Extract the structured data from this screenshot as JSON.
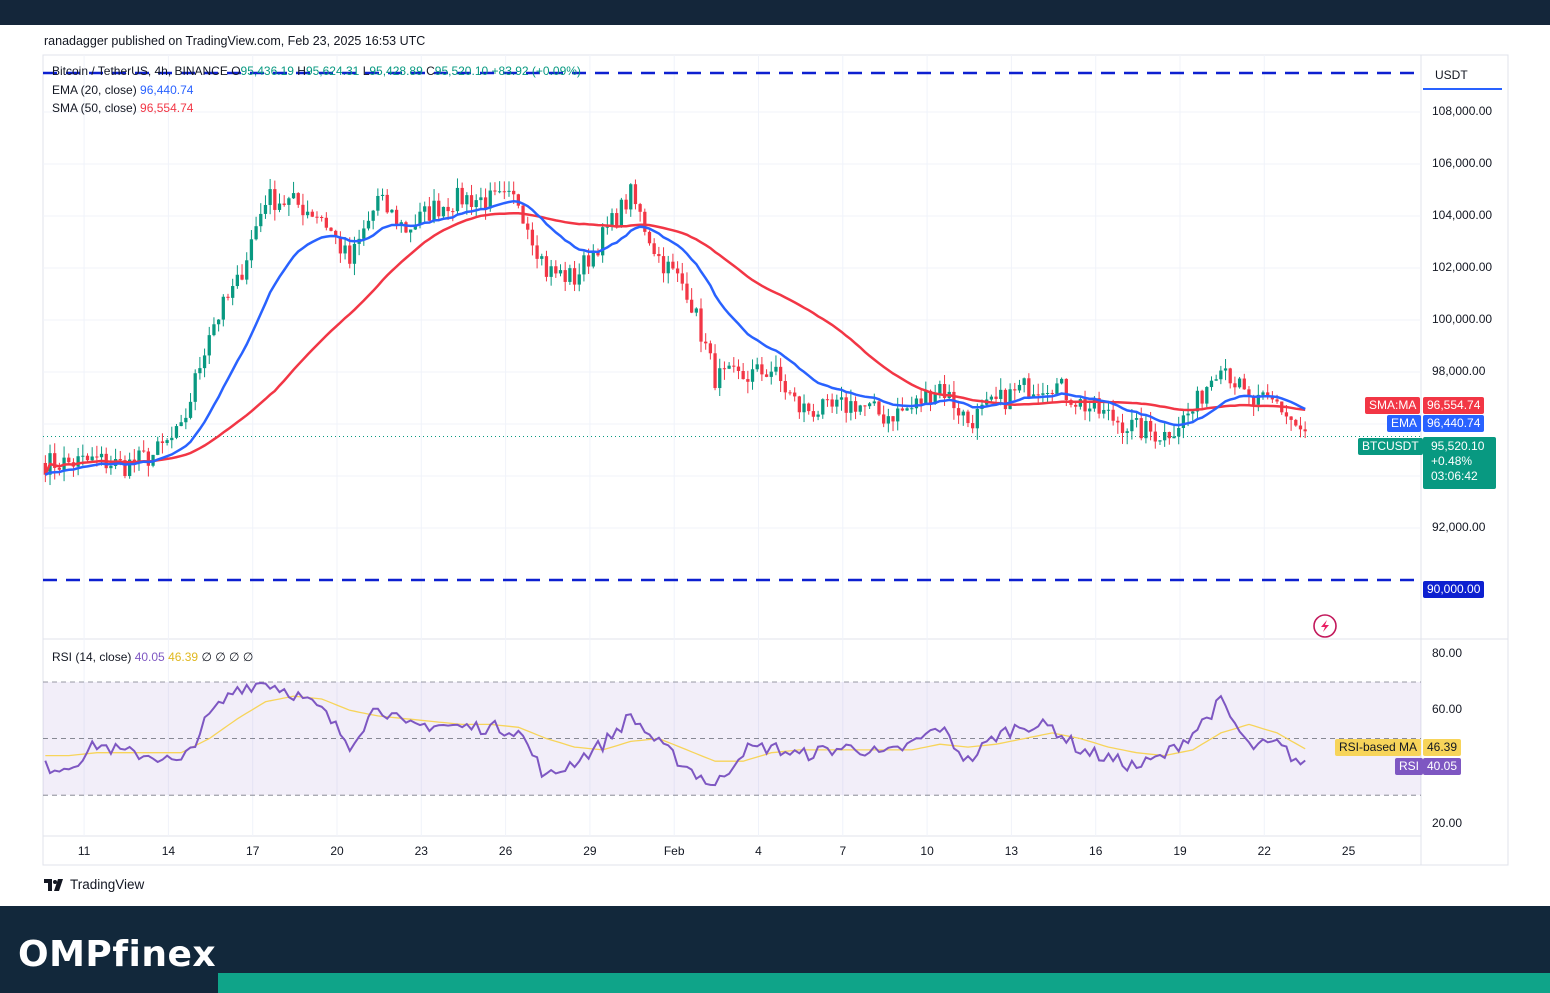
{
  "attribution": "ranadagger published on TradingView.com, Feb 23, 2025 16:53 UTC",
  "legend": {
    "symbol": "Bitcoin / TetherUS, 4h, BINANCE",
    "o_label": "O",
    "o_value": "95,436.19",
    "h_label": "H",
    "h_value": "95,624.31",
    "l_label": "L",
    "l_value": "95,428.89",
    "c_label": "C",
    "c_value": "95,520.10",
    "change": "+83.92 (+0.09%)",
    "ema_label": "EMA (20, close)",
    "ema_value": "96,440.74",
    "sma_label": "SMA (50, close)",
    "sma_value": "96,554.74",
    "rsi_label": "RSI (14, close)",
    "rsi_value": "40.05",
    "rsi_ma_value": "46.39",
    "rsi_extra": "∅ ∅ ∅ ∅"
  },
  "price_scale": {
    "currency": "USDT",
    "ticks": [
      "108,000.00",
      "106,000.00",
      "104,000.00",
      "102,000.00",
      "100,000.00",
      "98,000.00",
      "92,000.00"
    ],
    "labels": {
      "sma_name": "SMA:MA",
      "sma_value": "96,554.74",
      "ema_name": "EMA",
      "ema_value": "96,440.74",
      "symbol_name": "BTCUSDT",
      "price": "95,520.10",
      "change_pct": "+0.48%",
      "countdown": "03:06:42",
      "support": "90,000.00"
    }
  },
  "rsi_scale": {
    "ticks": [
      "80.00",
      "60.00",
      "20.00"
    ],
    "ma_name": "RSI-based MA",
    "ma_value": "46.39",
    "rsi_name": "RSI",
    "rsi_value": "40.05"
  },
  "time_axis": [
    "11",
    "14",
    "17",
    "20",
    "23",
    "26",
    "29",
    "Feb",
    "4",
    "7",
    "10",
    "13",
    "16",
    "19",
    "22",
    "25"
  ],
  "footer": {
    "tradingview": "TradingView",
    "brand": "OMPfinex"
  },
  "colors": {
    "up": "#089981",
    "down": "#f23645",
    "ema": "#2962ff",
    "sma": "#f23645",
    "rsi": "#7e57c2",
    "rsi_ma": "#f7d45a",
    "levels": "#0d20d0",
    "brand_bg": "#12283b",
    "accent": "#0fa489"
  },
  "chart_data": [
    {
      "type": "candlestick",
      "title": "Bitcoin / TetherUS, 4h, BINANCE",
      "x": [
        "Jan 10",
        "Jan 11",
        "Jan 12",
        "Jan 13",
        "Jan 14",
        "Jan 15",
        "Jan 16",
        "Jan 17",
        "Jan 18",
        "Jan 19",
        "Jan 20",
        "Jan 21",
        "Jan 22",
        "Jan 23",
        "Jan 24",
        "Jan 25",
        "Jan 26",
        "Jan 27",
        "Jan 28",
        "Jan 29",
        "Jan 30",
        "Jan 31",
        "Feb 1",
        "Feb 2",
        "Feb 3",
        "Feb 4",
        "Feb 5",
        "Feb 6",
        "Feb 7",
        "Feb 8",
        "Feb 9",
        "Feb 10",
        "Feb 11",
        "Feb 12",
        "Feb 13",
        "Feb 14",
        "Feb 15",
        "Feb 16",
        "Feb 17",
        "Feb 18",
        "Feb 19",
        "Feb 20",
        "Feb 21",
        "Feb 22",
        "Feb 23"
      ],
      "close": [
        94500,
        94600,
        94400,
        94800,
        95700,
        99600,
        101400,
        104700,
        104500,
        104000,
        102200,
        104600,
        103500,
        104300,
        104700,
        104600,
        104600,
        101900,
        101600,
        103200,
        104800,
        102400,
        101200,
        97800,
        97800,
        98100,
        96600,
        96500,
        96800,
        96300,
        96600,
        97500,
        96100,
        96800,
        97400,
        97600,
        96800,
        96300,
        95800,
        95600,
        96500,
        98500,
        96800,
        96800,
        95520
      ],
      "ema20_end": 96440.74,
      "sma50_end": 96554.74,
      "horizontal_levels": [
        109500,
        90000
      ],
      "yrange": [
        88000,
        110000
      ]
    },
    {
      "type": "line",
      "title": "RSI (14, close)",
      "x": [
        "Jan 10",
        "Jan 11",
        "Jan 12",
        "Jan 13",
        "Jan 14",
        "Jan 15",
        "Jan 16",
        "Jan 17",
        "Jan 18",
        "Jan 19",
        "Jan 20",
        "Jan 21",
        "Jan 22",
        "Jan 23",
        "Jan 24",
        "Jan 25",
        "Jan 26",
        "Jan 27",
        "Jan 28",
        "Jan 29",
        "Jan 30",
        "Jan 31",
        "Feb 1",
        "Feb 2",
        "Feb 3",
        "Feb 4",
        "Feb 5",
        "Feb 6",
        "Feb 7",
        "Feb 8",
        "Feb 9",
        "Feb 10",
        "Feb 11",
        "Feb 12",
        "Feb 13",
        "Feb 14",
        "Feb 15",
        "Feb 16",
        "Feb 17",
        "Feb 18",
        "Feb 19",
        "Feb 20",
        "Feb 21",
        "Feb 22",
        "Feb 23"
      ],
      "series": [
        {
          "name": "RSI",
          "values": [
            40,
            48,
            45,
            44,
            41,
            58,
            68,
            70,
            66,
            60,
            48,
            62,
            54,
            55,
            54,
            54,
            53,
            36,
            42,
            48,
            58,
            48,
            40,
            33,
            46,
            47,
            44,
            46,
            47,
            44,
            48,
            54,
            42,
            51,
            55,
            54,
            46,
            43,
            40,
            44,
            52,
            63,
            47,
            48,
            40.05
          ]
        },
        {
          "name": "RSI-based MA",
          "values": [
            44,
            45,
            45,
            45,
            45,
            50,
            57,
            63,
            65,
            64,
            60,
            58,
            57,
            56,
            55,
            55,
            54,
            50,
            47,
            46,
            49,
            50,
            46,
            42,
            42,
            45,
            46,
            46,
            46,
            46,
            46,
            48,
            47,
            48,
            50,
            52,
            50,
            47,
            45,
            44,
            46,
            52,
            55,
            52,
            46.39
          ]
        }
      ],
      "levels": [
        70,
        50,
        30
      ],
      "yrange": [
        17,
        82
      ]
    }
  ]
}
